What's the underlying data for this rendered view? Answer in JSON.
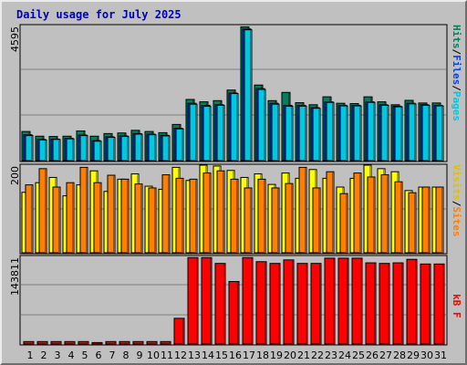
{
  "title": "Daily usage for July 2025",
  "colors": {
    "background": "#c0c0c0",
    "title": "#0000c0",
    "hits": "#00805c",
    "files": "#0040ff",
    "pages": "#00c8e0",
    "visits": "#ffff00",
    "sites": "#ff8000",
    "kbf": "#ff0000",
    "weekend_day": "#00805c",
    "weekday_day": "#000000"
  },
  "legends": {
    "top": {
      "hits": "Hits",
      "files": "Files",
      "pages": "Pages",
      "sep": "/"
    },
    "middle": {
      "visits": "Visits",
      "sites": "Sites",
      "sep": "/"
    },
    "bottom": {
      "kbf": "kB F"
    }
  },
  "chart_data": {
    "type": "bar",
    "categories": [
      "1",
      "2",
      "3",
      "4",
      "5",
      "6",
      "7",
      "8",
      "9",
      "10",
      "11",
      "12",
      "13",
      "14",
      "15",
      "16",
      "17",
      "18",
      "19",
      "20",
      "21",
      "22",
      "23",
      "24",
      "25",
      "26",
      "27",
      "28",
      "29",
      "30",
      "31"
    ],
    "weekend_days": [
      "5",
      "6",
      "12",
      "13",
      "19",
      "20",
      "26",
      "27"
    ],
    "panels": [
      {
        "name": "hits-files-pages",
        "max_label": "4595",
        "ylim": [
          0,
          4595
        ],
        "series": [
          {
            "name": "Hits",
            "values": [
              990,
              830,
              820,
              830,
              1010,
              830,
              920,
              940,
              1030,
              990,
              950,
              1230,
              2080,
              2000,
              2040,
              2400,
              4550,
              2570,
              2040,
              2320,
              1970,
              1900,
              2170,
              1950,
              1940,
              2170,
              2000,
              1900,
              2050,
              1960,
              1960
            ]
          },
          {
            "name": "Files",
            "values": [
              880,
              720,
              730,
              760,
              870,
              680,
              810,
              840,
              920,
              900,
              860,
              1100,
              1950,
              1880,
              1900,
              2300,
              4480,
              2450,
              1950,
              1880,
              1880,
              1800,
              2000,
              1880,
              1880,
              2000,
              1900,
              1850,
              1950,
              1900,
              1880
            ]
          },
          {
            "name": "Pages",
            "values": [
              850,
              700,
              720,
              740,
              850,
              660,
              790,
              820,
              900,
              880,
              840,
              1080,
              1920,
              1850,
              1880,
              2280,
              4450,
              2420,
              1920,
              1850,
              1850,
              1780,
              1980,
              1860,
              1860,
              1980,
              1880,
              1830,
              1930,
              1880,
              1860
            ]
          }
        ]
      },
      {
        "name": "visits-sites",
        "max_label": "200",
        "ylim": [
          0,
          200
        ],
        "series": [
          {
            "name": "Visits",
            "values": [
              138,
              160,
              172,
              130,
              155,
              187,
              140,
              168,
              180,
              152,
              145,
              195,
              165,
              200,
              198,
              188,
              172,
              180,
              156,
              182,
              170,
              190,
              170,
              150,
              170,
              203,
              192,
              185,
              142,
              150,
              150
            ]
          },
          {
            "name": "Sites",
            "values": [
              155,
              192,
              150,
              160,
              195,
              160,
              177,
              168,
              157,
              148,
              178,
              170,
              168,
              182,
              187,
              168,
              148,
              168,
              148,
              158,
              195,
              148,
              185,
              135,
              182,
              173,
              178,
              162,
              137,
              150,
              150
            ]
          }
        ]
      },
      {
        "name": "kbf",
        "max_label": "143811",
        "ylim": [
          0,
          150000
        ],
        "series": [
          {
            "name": "kB F",
            "values": [
              4200,
              4200,
              4200,
              4200,
              4200,
              2500,
              4200,
              4200,
              4200,
              4200,
              4200,
              44000,
              148000,
              148000,
              138000,
              107000,
              148000,
              141000,
              138000,
              144000,
              138000,
              138000,
              147000,
              147000,
              147000,
              139000,
              138000,
              139000,
              145000,
              137000,
              137000
            ]
          }
        ]
      }
    ]
  }
}
